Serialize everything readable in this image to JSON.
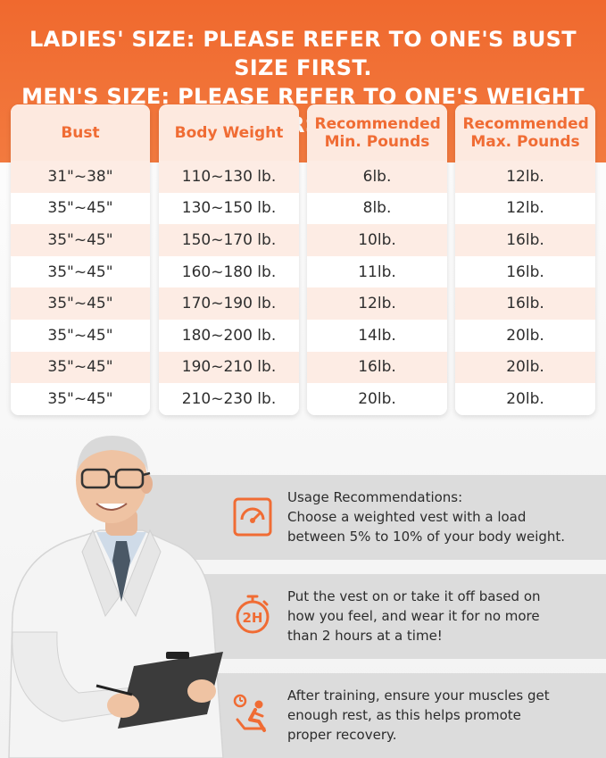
{
  "header": {
    "line1": "LADIES' SIZE: PLEASE REFER TO ONE'S BUST SIZE FIRST.",
    "line2": "MEN'S SIZE: PLEASE REFER TO ONE'S WEIGHT FIRST."
  },
  "table": {
    "headers": [
      "Bust",
      "Body Weight",
      "Recommended Min. Pounds",
      "Recommended Max. Pounds"
    ],
    "rows": [
      [
        "31\"~38\"",
        "110~130 lb.",
        "6lb.",
        "12lb."
      ],
      [
        "35\"~45\"",
        "130~150 lb.",
        "8lb.",
        "12lb."
      ],
      [
        "35\"~45\"",
        "150~170 lb.",
        "10lb.",
        "16lb."
      ],
      [
        "35\"~45\"",
        "160~180 lb.",
        "11lb.",
        "16lb."
      ],
      [
        "35\"~45\"",
        "170~190 lb.",
        "12lb.",
        "16lb."
      ],
      [
        "35\"~45\"",
        "180~200 lb.",
        "14lb.",
        "20lb."
      ],
      [
        "35\"~45\"",
        "190~210 lb.",
        "16lb.",
        "20lb."
      ],
      [
        "35\"~45\"",
        "210~230 lb.",
        "20lb.",
        "20lb."
      ]
    ]
  },
  "tips": [
    {
      "icon": "scale-icon",
      "lines": [
        "Usage Recommendations:",
        "Choose a weighted vest with a load",
        "between 5% to 10% of your body weight."
      ]
    },
    {
      "icon": "timer-2h-icon",
      "lines": [
        "Put the vest on or take it off based on",
        "how you feel, and wear it for no more",
        "than 2 hours at a time!"
      ]
    },
    {
      "icon": "rest-icon",
      "lines": [
        "After training, ensure your muscles get",
        "enough rest, as this helps promote",
        "proper recovery."
      ]
    }
  ],
  "icon_text": {
    "timer": "2H"
  },
  "colors": {
    "accent": "#f06c34",
    "header_bg": "#f0692e",
    "row_tint": "#fdece4",
    "card_bg": "#dcdcdc"
  }
}
